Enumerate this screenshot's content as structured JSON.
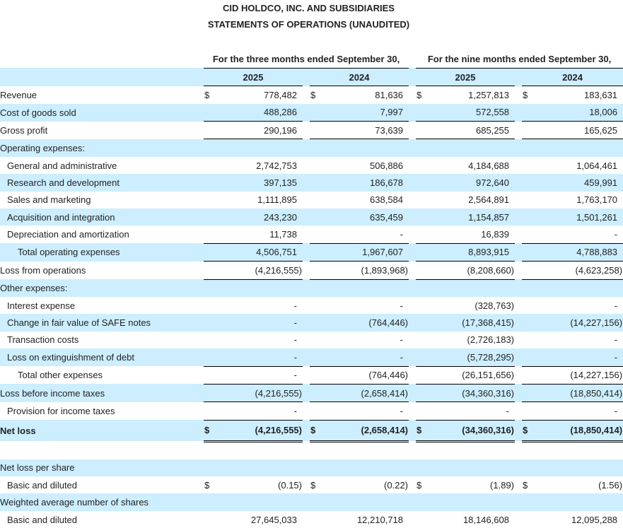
{
  "title": "CID HOLDCO, INC. AND SUBSIDIARIES",
  "subtitle": "STATEMENTS OF OPERATIONS (UNAUDITED)",
  "column_groups": [
    "For the three months ended September 30,",
    "For the nine months ended September 30,"
  ],
  "years": [
    "2025",
    "2024",
    "2025",
    "2024"
  ],
  "rows": [
    {
      "label": "Revenue",
      "indent": 0,
      "dollar": true,
      "values": [
        "778,482",
        "81,636",
        "1,257,813",
        "183,631"
      ]
    },
    {
      "label": "Cost of goods sold",
      "indent": 0,
      "values": [
        "488,286",
        "7,997",
        "572,558",
        "18,006"
      ]
    },
    {
      "label": "Gross profit",
      "indent": 0,
      "values": [
        "290,196",
        "73,639",
        "685,255",
        "165,625"
      ]
    },
    {
      "label": "Operating expenses:",
      "indent": 0,
      "values": [
        "",
        "",
        "",
        ""
      ]
    },
    {
      "label": "General and administrative",
      "indent": 1,
      "values": [
        "2,742,753",
        "506,886",
        "4,184,688",
        "1,064,461"
      ]
    },
    {
      "label": "Research and development",
      "indent": 1,
      "values": [
        "397,135",
        "186,678",
        "972,640",
        "459,991"
      ]
    },
    {
      "label": "Sales and marketing",
      "indent": 1,
      "values": [
        "1,111,895",
        "638,584",
        "2,564,891",
        "1,763,170"
      ]
    },
    {
      "label": "Acquisition and integration",
      "indent": 1,
      "values": [
        "243,230",
        "635,459",
        "1,154,857",
        "1,501,261"
      ]
    },
    {
      "label": "Depreciation and amortization",
      "indent": 1,
      "values": [
        "11,738",
        "-",
        "16,839",
        "-"
      ]
    },
    {
      "label": "Total operating expenses",
      "indent": 2,
      "values": [
        "4,506,751",
        "1,967,607",
        "8,893,915",
        "4,788,883"
      ]
    },
    {
      "label": "Loss from operations",
      "indent": 0,
      "values": [
        "(4,216,555)",
        "(1,893,968)",
        "(8,208,660)",
        "(4,623,258)"
      ]
    },
    {
      "label": "Other expenses:",
      "indent": 0,
      "values": [
        "",
        "",
        "",
        ""
      ]
    },
    {
      "label": "Interest expense",
      "indent": 1,
      "values": [
        "-",
        "-",
        "(328,763)",
        "-"
      ]
    },
    {
      "label": "Change in fair value of SAFE notes",
      "indent": 1,
      "values": [
        "-",
        "(764,446)",
        "(17,368,415)",
        "(14,227,156)"
      ]
    },
    {
      "label": "Transaction costs",
      "indent": 1,
      "values": [
        "-",
        "-",
        "(2,726,183)",
        "-"
      ]
    },
    {
      "label": "Loss on extinguishment of debt",
      "indent": 1,
      "values": [
        "-",
        "-",
        "(5,728,295)",
        "-"
      ]
    },
    {
      "label": "Total other expenses",
      "indent": 2,
      "values": [
        "-",
        "(764,446)",
        "(26,151,656)",
        "(14,227,156)"
      ]
    },
    {
      "label": "Loss before income taxes",
      "indent": 0,
      "values": [
        "(4,216,555)",
        "(2,658,414)",
        "(34,360,316)",
        "(18,850,414)"
      ]
    },
    {
      "label": "Provision for income taxes",
      "indent": 1,
      "values": [
        "-",
        "-",
        "-",
        "-"
      ]
    },
    {
      "label": "Net loss",
      "indent": 0,
      "dollar": true,
      "bold": true,
      "values": [
        "(4,216,555)",
        "(2,658,414)",
        "(34,360,316)",
        "(18,850,414)"
      ]
    },
    {
      "label": "",
      "blank": true,
      "values": [
        "",
        "",
        "",
        ""
      ]
    },
    {
      "label": "Net loss per share",
      "indent": 0,
      "values": [
        "",
        "",
        "",
        ""
      ]
    },
    {
      "label": "Basic and diluted",
      "indent": 1,
      "dollar": true,
      "values": [
        "(0.15)",
        "(0.22)",
        "(1.89)",
        "(1.56)"
      ]
    },
    {
      "label": "Weighted average number of shares",
      "indent": 0,
      "values": [
        "",
        "",
        "",
        ""
      ]
    },
    {
      "label": "Basic and diluted",
      "indent": 1,
      "values": [
        "27,645,033",
        "12,210,718",
        "18,146,608",
        "12,095,288"
      ]
    }
  ],
  "currency_symbol": "$",
  "colors": {
    "row_highlight": "#cceeff",
    "text": "#222222",
    "rule": "#000000"
  }
}
